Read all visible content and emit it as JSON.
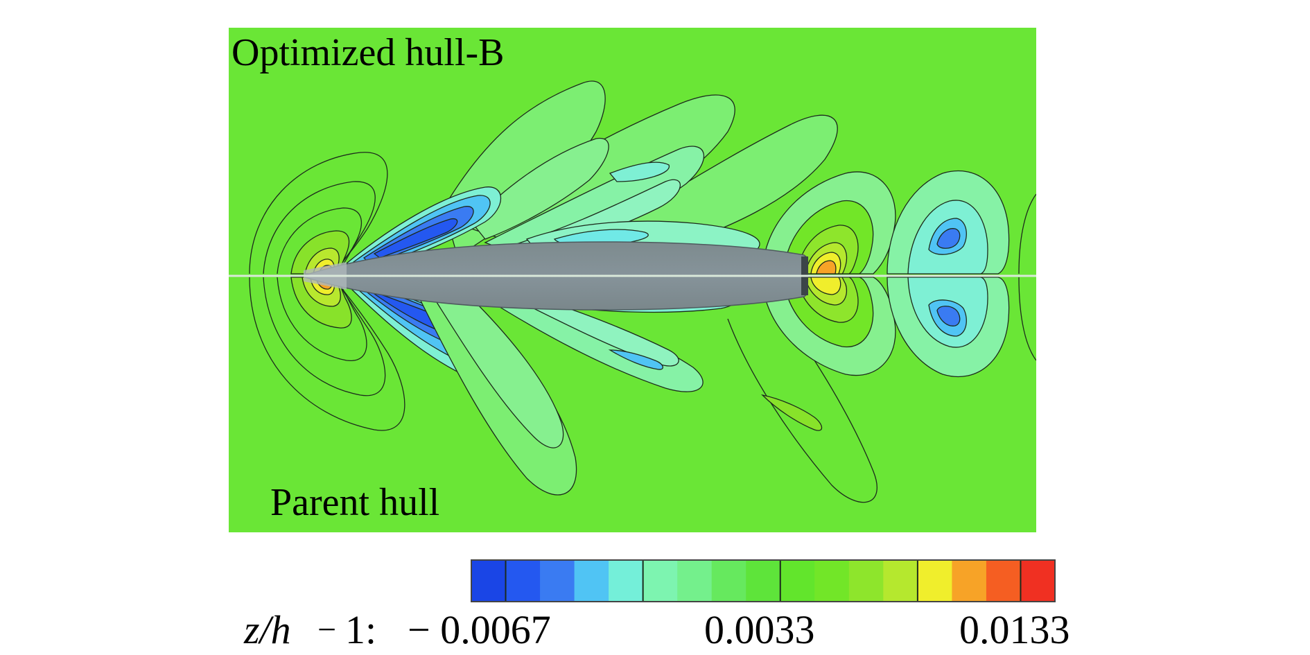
{
  "figure": {
    "top_label": "Optimized hull-B",
    "bottom_label": "Parent hull"
  },
  "colorbar": {
    "variable_label": "z/h",
    "minus_one_label": "1:",
    "minus_sign": "−",
    "tick_labels": [
      "− 0.0067",
      "0.0033",
      "0.0133"
    ],
    "tick_values": [
      -0.0067,
      0.0033,
      0.0133
    ],
    "range": [
      -0.0067,
      0.0133
    ],
    "level_count": 17,
    "level_colors": [
      "#1a45e6",
      "#2458f0",
      "#3a7bf2",
      "#50c4f4",
      "#74efd9",
      "#7df4b0",
      "#74f08c",
      "#66e95e",
      "#5ee43a",
      "#62e52c",
      "#72e628",
      "#8ee52c",
      "#b5e82e",
      "#f0ee2c",
      "#f7a327",
      "#f55e22",
      "#f03022"
    ]
  },
  "colors": {
    "background_field": "#6ae636",
    "hull": "#7c8a8e",
    "hull_edge": "#4e5a5e",
    "centerline": "#d9e8d9",
    "contour_line": "#1c2a1c"
  }
}
